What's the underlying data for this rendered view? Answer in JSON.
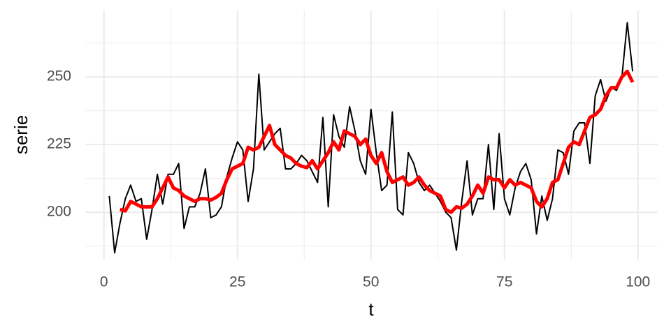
{
  "chart_data": {
    "type": "line",
    "x_label": "t",
    "y_label": "serie",
    "x": [
      1,
      2,
      3,
      4,
      5,
      6,
      7,
      8,
      9,
      10,
      11,
      12,
      13,
      14,
      15,
      16,
      17,
      18,
      19,
      20,
      21,
      22,
      23,
      24,
      25,
      26,
      27,
      28,
      29,
      30,
      31,
      32,
      33,
      34,
      35,
      36,
      37,
      38,
      39,
      40,
      41,
      42,
      43,
      44,
      45,
      46,
      47,
      48,
      49,
      50,
      51,
      52,
      53,
      54,
      55,
      56,
      57,
      58,
      59,
      60,
      61,
      62,
      63,
      64,
      65,
      66,
      67,
      68,
      69,
      70,
      71,
      72,
      73,
      74,
      75,
      76,
      77,
      78,
      79,
      80,
      81,
      82,
      83,
      84,
      85,
      86,
      87,
      88,
      89,
      90,
      91,
      92,
      93,
      94,
      95,
      96,
      97,
      98,
      99
    ],
    "series": [
      {
        "color": "#000000",
        "width": 2,
        "values": [
          206,
          185,
          196,
          205,
          210,
          204,
          205,
          190,
          201,
          214,
          203,
          214,
          214,
          218,
          194,
          202,
          202,
          207,
          216,
          198,
          199,
          202,
          213,
          220,
          226,
          223,
          204,
          216,
          251,
          223,
          226,
          229,
          231,
          216,
          216,
          218,
          221,
          219,
          215,
          211,
          235,
          202,
          236,
          228,
          224,
          239,
          230,
          219,
          214,
          238,
          222,
          208,
          210,
          237,
          201,
          199,
          222,
          218,
          211,
          208,
          210,
          207,
          204,
          200,
          198,
          186,
          204,
          219,
          199,
          205,
          205,
          225,
          201,
          229,
          205,
          199,
          209,
          215,
          218,
          212,
          192,
          206,
          197,
          205,
          223,
          222,
          214,
          230,
          233,
          233,
          218,
          243,
          249,
          241,
          246,
          245,
          250,
          270,
          252
        ]
      },
      {
        "color": "#ff0000",
        "width": 5,
        "values": [
          null,
          null,
          201,
          200.5,
          204,
          203,
          202,
          202,
          202,
          205,
          209,
          213,
          209,
          208,
          206,
          205,
          204,
          205,
          205,
          204.5,
          205.5,
          207,
          212,
          216,
          217,
          218,
          224,
          223,
          224,
          228,
          232,
          225,
          223,
          221,
          220,
          218,
          217,
          216.5,
          219,
          216,
          219,
          222,
          226,
          223,
          230,
          229,
          228,
          225,
          227,
          221,
          218,
          222,
          215,
          211,
          212,
          213,
          210,
          211,
          213,
          210,
          208,
          207,
          206,
          201,
          200,
          202,
          201.5,
          203,
          206,
          210,
          207,
          213,
          212,
          212,
          209,
          212,
          210,
          211,
          210,
          209,
          204,
          202,
          205,
          211,
          212,
          218,
          224,
          226,
          225,
          230,
          235,
          236,
          238,
          243,
          246,
          246,
          250,
          252,
          248
        ]
      }
    ],
    "xlim": [
      -3.5,
      103.7
    ],
    "ylim": [
      182.5,
      274.5
    ],
    "xticks": [
      0,
      25,
      50,
      75,
      100
    ],
    "yticks": [
      200,
      225,
      250
    ],
    "x_minor_ticks": [
      12.5,
      37.5,
      62.5,
      87.5
    ],
    "y_minor_ticks": [
      187.5,
      212.5,
      237.5,
      262.5
    ],
    "grid": true
  }
}
